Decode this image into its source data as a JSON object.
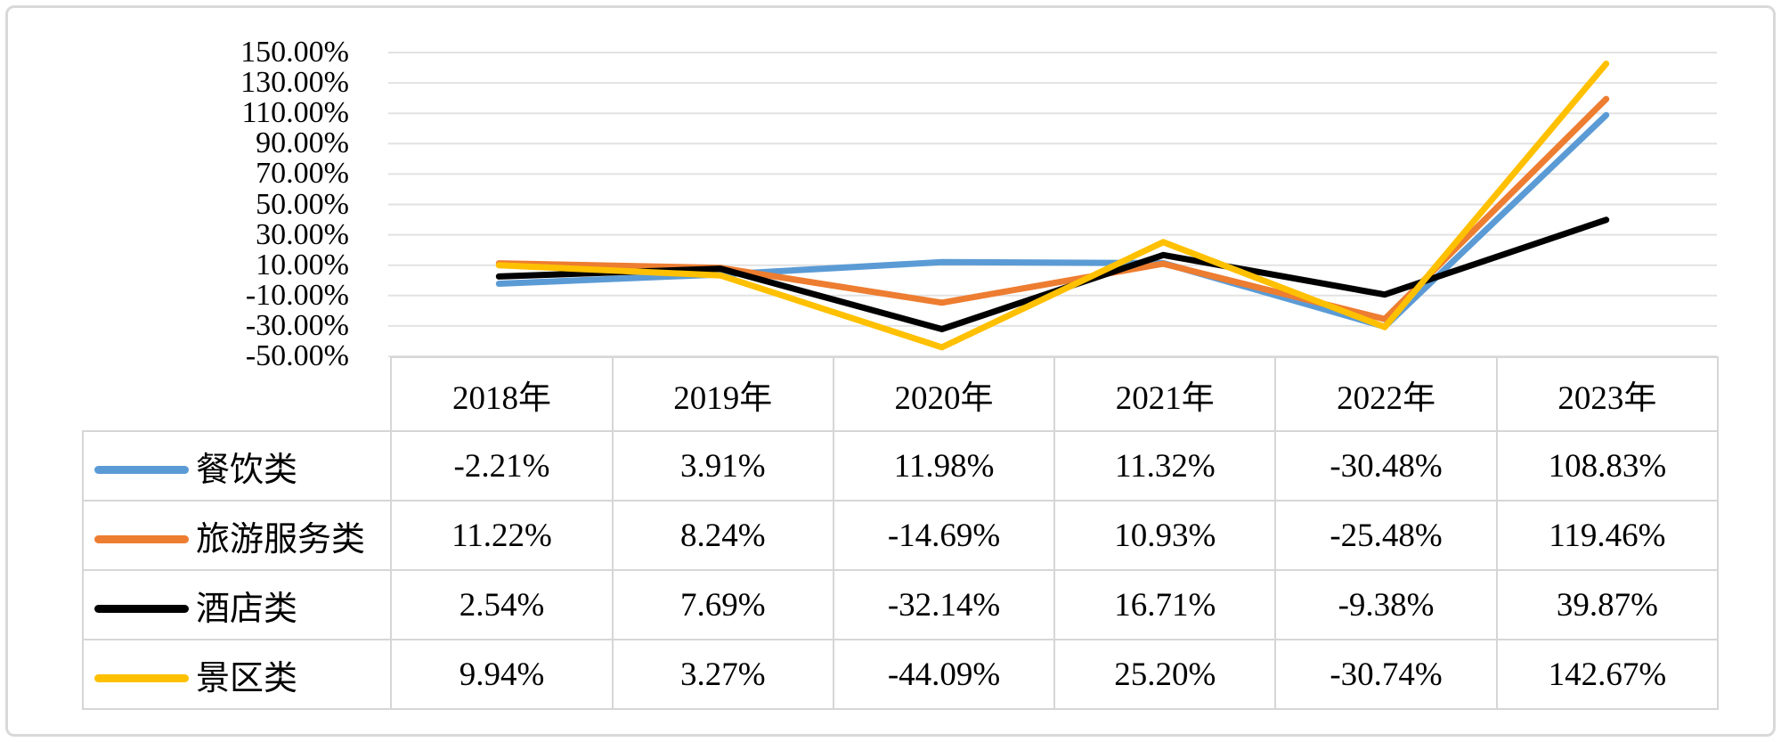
{
  "chart_data": {
    "type": "line",
    "title": "",
    "xlabel": "",
    "ylabel": "",
    "categories": [
      "2018年",
      "2019年",
      "2020年",
      "2021年",
      "2022年",
      "2023年"
    ],
    "series": [
      {
        "name": "餐饮类",
        "color": "#5B9BD5",
        "values": [
          -2.21,
          3.91,
          11.98,
          11.32,
          -30.48,
          108.83
        ]
      },
      {
        "name": "旅游服务类",
        "color": "#ED7D31",
        "values": [
          11.22,
          8.24,
          -14.69,
          10.93,
          -25.48,
          119.46
        ]
      },
      {
        "name": "酒店类",
        "color": "#000000",
        "values": [
          2.54,
          7.69,
          -32.14,
          16.71,
          -9.38,
          39.87
        ]
      },
      {
        "name": "景区类",
        "color": "#FFC000",
        "values": [
          9.94,
          3.27,
          -44.09,
          25.2,
          -30.74,
          142.67
        ]
      }
    ],
    "y_axis": {
      "min": -50,
      "max": 150,
      "step": 20,
      "tick_labels": [
        "150.00%",
        "130.00%",
        "110.00%",
        "90.00%",
        "70.00%",
        "50.00%",
        "30.00%",
        "10.00%",
        "-10.00%",
        "-30.00%",
        "-50.00%"
      ]
    },
    "grid": "horizontal-major",
    "legend_position": "data-table-left-keys"
  },
  "table": {
    "headers": [
      "2018年",
      "2019年",
      "2020年",
      "2021年",
      "2022年",
      "2023年"
    ],
    "rows": [
      {
        "label": "餐饮类",
        "key_color": "#5B9BD5",
        "cells": [
          "-2.21%",
          "3.91%",
          "11.98%",
          "11.32%",
          "-30.48%",
          "108.83%"
        ]
      },
      {
        "label": "旅游服务类",
        "key_color": "#ED7D31",
        "cells": [
          "11.22%",
          "8.24%",
          "-14.69%",
          "10.93%",
          "-25.48%",
          "119.46%"
        ]
      },
      {
        "label": "酒店类",
        "key_color": "#000000",
        "cells": [
          "2.54%",
          "7.69%",
          "-32.14%",
          "16.71%",
          "-9.38%",
          "39.87%"
        ]
      },
      {
        "label": "景区类",
        "key_color": "#FFC000",
        "cells": [
          "9.94%",
          "3.27%",
          "-44.09%",
          "25.20%",
          "-30.74%",
          "142.67%"
        ]
      }
    ]
  },
  "colors": {
    "gridline": "#e2e2e2",
    "table_border": "#d6d6d6",
    "frame_border": "#d9d9d9",
    "background": "#ffffff",
    "text": "#000000"
  }
}
